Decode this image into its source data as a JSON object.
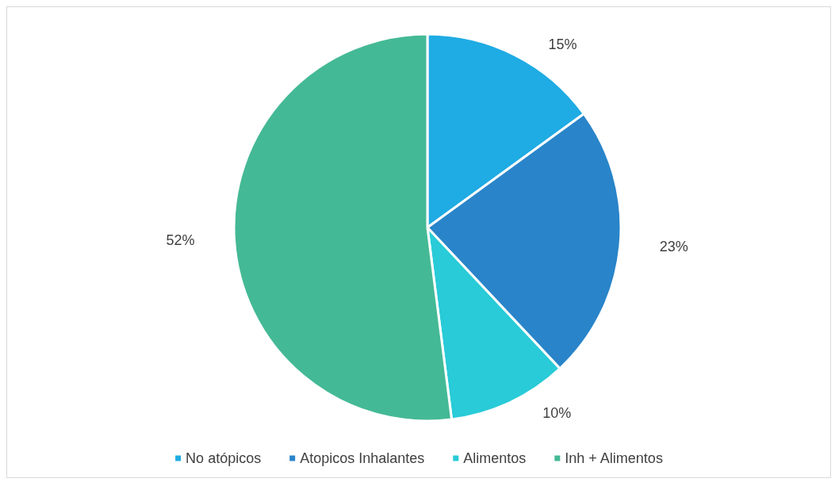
{
  "chart_data": {
    "type": "pie",
    "categories": [
      "No atópicos",
      "Atopicos Inhalantes",
      "Alimentos",
      "Inh + Alimentos"
    ],
    "values": [
      15,
      23,
      10,
      52
    ],
    "value_labels": [
      "15%",
      "23%",
      "10%",
      "52%"
    ],
    "colors": [
      "#1fabe3",
      "#2984c9",
      "#28cbd7",
      "#44b995"
    ],
    "legend": "bottom"
  }
}
